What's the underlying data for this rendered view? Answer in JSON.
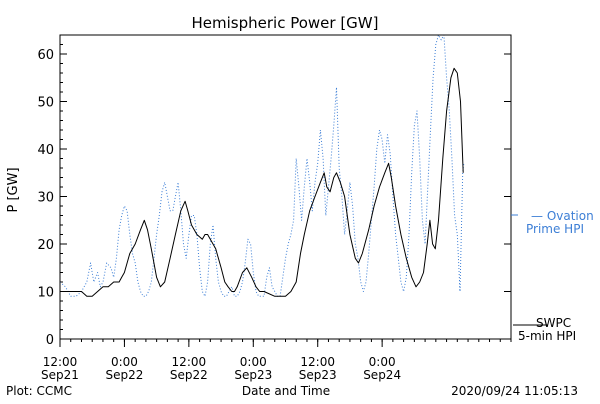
{
  "chart_data": {
    "type": "line",
    "title": "Hemispheric Power [GW]",
    "xlabel": "Date and Time",
    "ylabel": "P [GW]",
    "ylim": [
      0,
      64
    ],
    "xlim_hours": [
      0,
      84
    ],
    "yticks": [
      0,
      10,
      20,
      30,
      40,
      50,
      60
    ],
    "xticks": [
      {
        "h": 0,
        "time": "12:00",
        "date": "Sep21"
      },
      {
        "h": 12,
        "time": "0:00",
        "date": "Sep22"
      },
      {
        "h": 24,
        "time": "12:00",
        "date": "Sep22"
      },
      {
        "h": 36,
        "time": "0:00",
        "date": "Sep23"
      },
      {
        "h": 48,
        "time": "12:00",
        "date": "Sep23"
      },
      {
        "h": 60,
        "time": "0:00",
        "date": "Sep24"
      }
    ],
    "series": [
      {
        "name": "SWPC 5-min HPI",
        "legend": [
          "SWPC",
          "5-min HPI"
        ],
        "color": "#000000",
        "style": "solid",
        "points": [
          [
            0,
            10
          ],
          [
            4,
            10
          ],
          [
            5,
            9
          ],
          [
            6,
            9
          ],
          [
            7,
            10
          ],
          [
            8,
            11
          ],
          [
            9,
            11
          ],
          [
            10,
            12
          ],
          [
            11,
            12
          ],
          [
            11.5,
            13
          ],
          [
            12,
            14
          ],
          [
            13,
            18
          ],
          [
            14,
            20
          ],
          [
            15,
            23
          ],
          [
            15.7,
            25
          ],
          [
            16.3,
            23
          ],
          [
            17,
            19
          ],
          [
            18,
            13
          ],
          [
            18.7,
            11
          ],
          [
            19.5,
            12
          ],
          [
            20.5,
            17
          ],
          [
            21.5,
            22
          ],
          [
            22.5,
            27
          ],
          [
            23.3,
            29
          ],
          [
            23.8,
            27
          ],
          [
            24.5,
            24
          ],
          [
            25.5,
            22
          ],
          [
            26.5,
            21
          ],
          [
            27,
            22
          ],
          [
            27.5,
            22
          ],
          [
            28,
            21
          ],
          [
            29,
            19
          ],
          [
            30,
            15
          ],
          [
            30.7,
            12
          ],
          [
            31.3,
            11
          ],
          [
            32,
            10
          ],
          [
            32.5,
            10
          ],
          [
            33,
            11
          ],
          [
            34,
            14
          ],
          [
            34.8,
            15
          ],
          [
            35.7,
            13
          ],
          [
            36.5,
            11
          ],
          [
            37.2,
            10
          ],
          [
            38,
            10
          ],
          [
            40,
            9
          ],
          [
            42,
            9
          ],
          [
            43,
            10
          ],
          [
            44,
            12
          ],
          [
            44.8,
            18
          ],
          [
            45.5,
            22
          ],
          [
            46.5,
            27
          ],
          [
            47.5,
            30
          ],
          [
            48.5,
            33
          ],
          [
            49.2,
            35
          ],
          [
            49.7,
            32
          ],
          [
            50.3,
            31
          ],
          [
            51,
            34
          ],
          [
            51.5,
            35
          ],
          [
            52.2,
            33
          ],
          [
            53,
            30
          ],
          [
            54,
            22
          ],
          [
            55,
            17
          ],
          [
            55.6,
            16
          ],
          [
            56.3,
            18
          ],
          [
            57.5,
            23
          ],
          [
            58.5,
            28
          ],
          [
            59.5,
            32
          ],
          [
            60.5,
            35
          ],
          [
            61.2,
            37
          ],
          [
            61.7,
            34
          ],
          [
            62.5,
            28
          ],
          [
            63.5,
            22
          ],
          [
            64.5,
            17
          ],
          [
            65.5,
            13
          ],
          [
            66.3,
            11
          ],
          [
            67,
            12
          ],
          [
            67.7,
            14
          ],
          [
            68.4,
            20
          ],
          [
            68.9,
            25
          ],
          [
            69.4,
            20
          ],
          [
            69.9,
            19
          ],
          [
            70.5,
            25
          ],
          [
            71.3,
            38
          ],
          [
            72,
            48
          ],
          [
            72.8,
            55
          ],
          [
            73.4,
            57
          ],
          [
            74,
            56
          ],
          [
            74.6,
            50
          ],
          [
            75.1,
            35
          ]
        ]
      },
      {
        "name": "Ovation Prime HPI",
        "legend": [
          "— Ovation",
          "Prime HPI"
        ],
        "color": "#3d7fd6",
        "style": "dotted",
        "points": [
          [
            0,
            12
          ],
          [
            1,
            11
          ],
          [
            2,
            9
          ],
          [
            3,
            9
          ],
          [
            4,
            10
          ],
          [
            5,
            12
          ],
          [
            5.7,
            16
          ],
          [
            6.3,
            12
          ],
          [
            7,
            14
          ],
          [
            7.5,
            11
          ],
          [
            8,
            12
          ],
          [
            8.7,
            16
          ],
          [
            9.5,
            15
          ],
          [
            10,
            13
          ],
          [
            10.5,
            17
          ],
          [
            11,
            23
          ],
          [
            11.5,
            26
          ],
          [
            12,
            28
          ],
          [
            12.5,
            27
          ],
          [
            13,
            22
          ],
          [
            13.5,
            18
          ],
          [
            14,
            16
          ],
          [
            14.5,
            12
          ],
          [
            15,
            10
          ],
          [
            15.5,
            9
          ],
          [
            16,
            9
          ],
          [
            16.5,
            10
          ],
          [
            17,
            12
          ],
          [
            17.5,
            17
          ],
          [
            18,
            22
          ],
          [
            18.5,
            26
          ],
          [
            19,
            31
          ],
          [
            19.5,
            33
          ],
          [
            20,
            30
          ],
          [
            20.5,
            27
          ],
          [
            21,
            27
          ],
          [
            21.5,
            30
          ],
          [
            22,
            33
          ],
          [
            22.5,
            27
          ],
          [
            23,
            20
          ],
          [
            23.5,
            17
          ],
          [
            24,
            22
          ],
          [
            24.5,
            26
          ],
          [
            25,
            26
          ],
          [
            25.5,
            22
          ],
          [
            26,
            15
          ],
          [
            26.5,
            10
          ],
          [
            27,
            9
          ],
          [
            27.5,
            12
          ],
          [
            28,
            20
          ],
          [
            28.5,
            24
          ],
          [
            29,
            17
          ],
          [
            29.5,
            12
          ],
          [
            30,
            10
          ],
          [
            30.5,
            9
          ],
          [
            31,
            9
          ],
          [
            31.5,
            10
          ],
          [
            32,
            11
          ],
          [
            32.5,
            9
          ],
          [
            33,
            9
          ],
          [
            33.5,
            10
          ],
          [
            34,
            12
          ],
          [
            34.5,
            16
          ],
          [
            35,
            21
          ],
          [
            35.5,
            20
          ],
          [
            36,
            14
          ],
          [
            36.5,
            10
          ],
          [
            37,
            9
          ],
          [
            37.5,
            9
          ],
          [
            38,
            9
          ],
          [
            38.5,
            13
          ],
          [
            39,
            15
          ],
          [
            39.5,
            11
          ],
          [
            40,
            10
          ],
          [
            40.5,
            9
          ],
          [
            41,
            9
          ],
          [
            41.5,
            13
          ],
          [
            42,
            17
          ],
          [
            42.5,
            20
          ],
          [
            43,
            22
          ],
          [
            43.5,
            25
          ],
          [
            44,
            38
          ],
          [
            44.5,
            32
          ],
          [
            45,
            25
          ],
          [
            45.5,
            32
          ],
          [
            46,
            38
          ],
          [
            46.5,
            33
          ],
          [
            47,
            27
          ],
          [
            47.5,
            33
          ],
          [
            48,
            37
          ],
          [
            48.5,
            44
          ],
          [
            49,
            38
          ],
          [
            49.5,
            26
          ],
          [
            50,
            32
          ],
          [
            50.5,
            38
          ],
          [
            51,
            45
          ],
          [
            51.5,
            53
          ],
          [
            52,
            36
          ],
          [
            52.5,
            30
          ],
          [
            53,
            22
          ],
          [
            53.5,
            27
          ],
          [
            54,
            33
          ],
          [
            54.5,
            28
          ],
          [
            55,
            20
          ],
          [
            55.5,
            17
          ],
          [
            56,
            12
          ],
          [
            56.5,
            10
          ],
          [
            57,
            12
          ],
          [
            57.5,
            18
          ],
          [
            58,
            25
          ],
          [
            58.5,
            32
          ],
          [
            59,
            40
          ],
          [
            59.5,
            44
          ],
          [
            60,
            42
          ],
          [
            60.5,
            37
          ],
          [
            61,
            43
          ],
          [
            61.5,
            39
          ],
          [
            62,
            30
          ],
          [
            62.5,
            22
          ],
          [
            63,
            17
          ],
          [
            63.5,
            12
          ],
          [
            64,
            10
          ],
          [
            64.5,
            13
          ],
          [
            65,
            22
          ],
          [
            65.5,
            35
          ],
          [
            66,
            45
          ],
          [
            66.5,
            48
          ],
          [
            67,
            38
          ],
          [
            67.5,
            25
          ],
          [
            68,
            20
          ],
          [
            68.5,
            32
          ],
          [
            69,
            44
          ],
          [
            69.5,
            55
          ],
          [
            70,
            62
          ],
          [
            70.5,
            64
          ],
          [
            71,
            63
          ],
          [
            71.5,
            64
          ],
          [
            72,
            55
          ],
          [
            72.5,
            48
          ],
          [
            73,
            38
          ],
          [
            73.5,
            26
          ],
          [
            74,
            22
          ],
          [
            74.5,
            10
          ],
          [
            75,
            35
          ],
          [
            75.2,
            37
          ]
        ]
      }
    ]
  },
  "footer": {
    "left": "Plot: CCMC",
    "center": "Date and Time",
    "right": "2020/09/24 11:05:13"
  }
}
